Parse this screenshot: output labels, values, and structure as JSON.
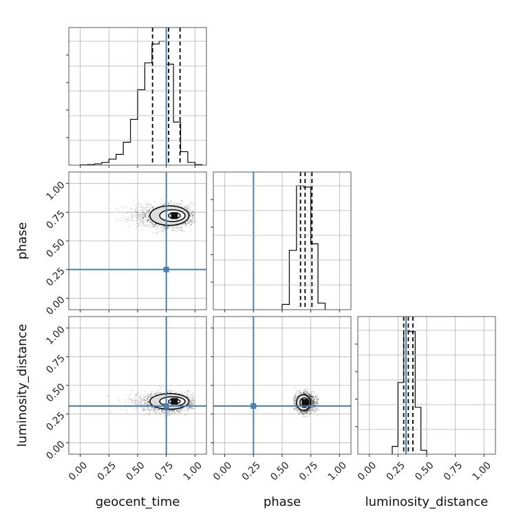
{
  "chart_data": {
    "type": "corner",
    "parameters": [
      "geocent_time",
      "phase",
      "luminosity_distance"
    ],
    "axis_range": [
      -0.1,
      1.1
    ],
    "ticks": [
      0.0,
      0.25,
      0.5,
      0.75,
      1.0
    ],
    "tick_labels": [
      "0.00",
      "0.25",
      "0.50",
      "0.75",
      "1.00"
    ],
    "grid": true,
    "truths": {
      "geocent_time": 0.75,
      "phase": 0.25,
      "luminosity_distance": 0.32
    },
    "colors": {
      "truth": "#4a7fb0",
      "histogram": "#000000",
      "samples": "#000000"
    },
    "marginals": {
      "geocent_time": {
        "bin_edges": [
          0.0,
          0.0625,
          0.125,
          0.1875,
          0.25,
          0.3125,
          0.375,
          0.4375,
          0.5,
          0.5625,
          0.625,
          0.6875,
          0.75,
          0.8125,
          0.875,
          0.9375,
          1.0,
          1.0625
        ],
        "counts": [
          0.002,
          0.004,
          0.01,
          0.02,
          0.045,
          0.08,
          0.17,
          0.34,
          0.56,
          0.76,
          0.9,
          0.92,
          0.75,
          0.32,
          0.1,
          0.02,
          0.004
        ],
        "quantiles": [
          0.63,
          0.77,
          0.87
        ]
      },
      "phase": {
        "bin_edges": [
          0.5,
          0.5625,
          0.625,
          0.6875,
          0.75,
          0.8125,
          0.875
        ],
        "counts": [
          0.04,
          0.45,
          0.94,
          0.93,
          0.5,
          0.05
        ],
        "quantiles": [
          0.66,
          0.7,
          0.76
        ]
      },
      "luminosity_distance": {
        "bin_edges": [
          0.2,
          0.25,
          0.3,
          0.35,
          0.4,
          0.45,
          0.5
        ],
        "counts": [
          0.06,
          0.55,
          0.95,
          0.94,
          0.36,
          0.03
        ],
        "quantiles": [
          0.3,
          0.34,
          0.38
        ]
      }
    },
    "posterior_2d": {
      "geocent_time_vs_phase": {
        "x": "geocent_time",
        "y": "phase",
        "center": [
          0.77,
          0.71
        ],
        "spread": [
          0.1,
          0.05
        ],
        "x_range": [
          0.22,
          1.0
        ],
        "y_range": [
          0.56,
          0.86
        ],
        "peak": [
          0.82,
          0.72
        ]
      },
      "geocent_time_vs_luminosity_distance": {
        "x": "geocent_time",
        "y": "luminosity_distance",
        "center": [
          0.77,
          0.35
        ],
        "spread": [
          0.1,
          0.04
        ],
        "x_range": [
          0.2,
          1.0
        ],
        "y_range": [
          0.22,
          0.5
        ],
        "peak": [
          0.82,
          0.36
        ]
      },
      "phase_vs_luminosity_distance": {
        "x": "phase",
        "y": "luminosity_distance",
        "center": [
          0.7,
          0.35
        ],
        "spread": [
          0.035,
          0.04
        ],
        "x_range": [
          0.6,
          0.82
        ],
        "y_range": [
          0.22,
          0.5
        ],
        "peak": [
          0.7,
          0.35
        ]
      }
    }
  }
}
